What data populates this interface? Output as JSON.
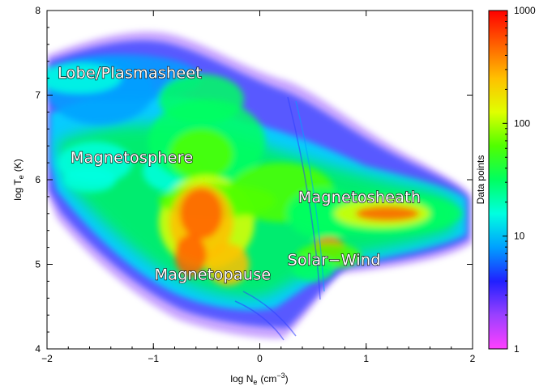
{
  "chart_data": {
    "type": "heatmap",
    "x_axis": {
      "label_main": "log N",
      "label_sub": "e",
      "label_unit": "(cm",
      "label_exp": "−3",
      "label_close": ")",
      "range": [
        -2,
        2
      ],
      "ticks": [
        -2,
        -1,
        0,
        1,
        2
      ]
    },
    "y_axis": {
      "label_main": "log T",
      "label_sub": "e",
      "label_unit": "(K)",
      "range": [
        4,
        8
      ],
      "ticks": [
        4,
        5,
        6,
        7,
        8
      ]
    },
    "colorbar": {
      "label": "Data   points",
      "scale": "log",
      "range": [
        1,
        1000
      ],
      "ticks": [
        1,
        10,
        100,
        1000
      ],
      "colors": [
        "#ff40ff",
        "#9a40ff",
        "#2020ff",
        "#00a0ff",
        "#00ffe0",
        "#00ff60",
        "#50ff00",
        "#e0ff00",
        "#ffc000",
        "#ff6000",
        "#ff0000"
      ]
    },
    "annotations": [
      {
        "text": "Lobe/Plasmasheet",
        "x": -1.9,
        "y": 7.2
      },
      {
        "text": "Magnetosphere",
        "x": -1.78,
        "y": 6.2
      },
      {
        "text": "Magnetosheath",
        "x": 0.36,
        "y": 5.73
      },
      {
        "text": "Solar−Wind",
        "x": 0.26,
        "y": 4.99
      },
      {
        "text": "Magnetopause",
        "x": -0.99,
        "y": 4.82
      }
    ],
    "density_regions": [
      {
        "x": -1.3,
        "y": 7.2,
        "rx": 0.75,
        "ry": 0.28,
        "level": 3
      },
      {
        "x": -1.5,
        "y": 7.05,
        "rx": 0.5,
        "ry": 0.4,
        "level": 3
      },
      {
        "x": -1.7,
        "y": 7.2,
        "rx": 0.4,
        "ry": 0.18,
        "level": 4
      },
      {
        "x": -1.55,
        "y": 6.2,
        "rx": 0.35,
        "ry": 0.25,
        "level": 4
      },
      {
        "x": -0.8,
        "y": 6.1,
        "rx": 0.3,
        "ry": 0.25,
        "level": 4
      },
      {
        "x": -0.5,
        "y": 6.45,
        "rx": 0.55,
        "ry": 0.5,
        "level": 5
      },
      {
        "x": -0.55,
        "y": 6.95,
        "rx": 0.4,
        "ry": 0.3,
        "level": 5
      },
      {
        "x": -0.55,
        "y": 6.3,
        "rx": 0.3,
        "ry": 0.3,
        "level": 6
      },
      {
        "x": -0.5,
        "y": 5.5,
        "rx": 0.45,
        "ry": 0.55,
        "level": 7
      },
      {
        "x": -0.4,
        "y": 5.75,
        "rx": 0.55,
        "ry": 0.2,
        "level": 6
      },
      {
        "x": -0.55,
        "y": 5.5,
        "rx": 0.3,
        "ry": 0.45,
        "level": 8
      },
      {
        "x": -0.55,
        "y": 5.6,
        "rx": 0.2,
        "ry": 0.3,
        "level": 9
      },
      {
        "x": -0.3,
        "y": 5.0,
        "rx": 0.2,
        "ry": 0.25,
        "level": 8
      },
      {
        "x": -0.65,
        "y": 5.1,
        "rx": 0.15,
        "ry": 0.25,
        "level": 9
      },
      {
        "x": 0.2,
        "y": 5.85,
        "rx": 0.5,
        "ry": 0.35,
        "level": 6
      },
      {
        "x": 0.6,
        "y": 5.6,
        "rx": 0.35,
        "ry": 0.3,
        "level": 5
      },
      {
        "x": 1.1,
        "y": 5.6,
        "rx": 0.8,
        "ry": 0.25,
        "level": 5
      },
      {
        "x": 1.15,
        "y": 5.6,
        "rx": 0.45,
        "ry": 0.17,
        "level": 7
      },
      {
        "x": 1.2,
        "y": 5.6,
        "rx": 0.3,
        "ry": 0.09,
        "level": 9
      },
      {
        "x": 0.65,
        "y": 5.2,
        "rx": 0.15,
        "ry": 0.12,
        "level": 9
      },
      {
        "x": 0.65,
        "y": 5.1,
        "rx": 0.3,
        "ry": 0.15,
        "level": 6
      },
      {
        "x": 0.5,
        "y": 4.95,
        "rx": 0.2,
        "ry": 0.15,
        "level": 5
      },
      {
        "x": -1.6,
        "y": 6.0,
        "rx": 0.25,
        "ry": 0.15,
        "level": 4
      }
    ]
  }
}
